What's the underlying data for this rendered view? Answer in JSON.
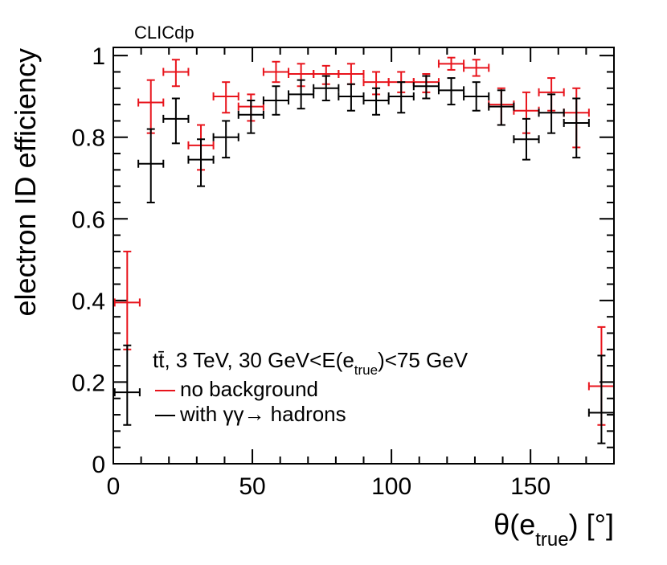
{
  "chart_data": {
    "type": "scatter",
    "experiment_label": "CLICdp",
    "xlabel_main": "θ(e",
    "xlabel_sub": "true",
    "xlabel_tail": ") [°]",
    "ylabel": "electron ID efficiency",
    "xlim": [
      0,
      180
    ],
    "ylim": [
      0,
      1.02
    ],
    "x_ticks": [
      0,
      50,
      100,
      150
    ],
    "x_tick_labels": [
      "0",
      "50",
      "100",
      "150"
    ],
    "y_ticks": [
      0,
      0.2,
      0.4,
      0.6,
      0.8,
      1
    ],
    "y_tick_labels": [
      "0",
      "0.2",
      "0.4",
      "0.6",
      "0.8",
      "1"
    ],
    "legend": {
      "header_main": "tt̄, 3 TeV, 30 GeV<E(e",
      "header_sub": "true",
      "header_tail": ")<75 GeV",
      "entries": [
        "no background",
        "with γγ→ hadrons"
      ]
    },
    "series": [
      {
        "name": "no background",
        "color": "#e8141c",
        "x": [
          5,
          13.5,
          22.5,
          31.5,
          40.5,
          49.5,
          58.5,
          67.5,
          76.5,
          85.5,
          94.5,
          103.5,
          112.5,
          121.5,
          130.5,
          139.5,
          148.5,
          157.5,
          166.5,
          175.5
        ],
        "xerr": [
          4.5,
          4.5,
          4.5,
          4.5,
          4.5,
          4.5,
          4.5,
          4.5,
          4.5,
          4.5,
          4.5,
          4.5,
          4.5,
          4.5,
          4.5,
          4.5,
          4.5,
          4.5,
          4.5,
          4.5
        ],
        "y": [
          0.395,
          0.885,
          0.96,
          0.78,
          0.9,
          0.875,
          0.96,
          0.955,
          0.955,
          0.955,
          0.935,
          0.935,
          0.935,
          0.98,
          0.97,
          0.88,
          0.865,
          0.91,
          0.86,
          0.19
        ],
        "yerr_up": [
          0.125,
          0.055,
          0.03,
          0.05,
          0.035,
          0.03,
          0.025,
          0.025,
          0.02,
          0.025,
          0.025,
          0.025,
          0.02,
          0.015,
          0.02,
          0.04,
          0.045,
          0.035,
          0.06,
          0.145
        ],
        "yerr_down": [
          0.115,
          0.075,
          0.035,
          0.06,
          0.04,
          0.035,
          0.025,
          0.03,
          0.025,
          0.025,
          0.03,
          0.025,
          0.025,
          0.015,
          0.02,
          0.05,
          0.055,
          0.045,
          0.085,
          0.095
        ]
      },
      {
        "name": "with γγ→ hadrons",
        "color": "#000000",
        "x": [
          5,
          13.5,
          22.5,
          31.5,
          40.5,
          49.5,
          58.5,
          67.5,
          76.5,
          85.5,
          94.5,
          103.5,
          112.5,
          121.5,
          130.5,
          139.5,
          148.5,
          157.5,
          166.5,
          175.5
        ],
        "xerr": [
          4.5,
          4.5,
          4.5,
          4.5,
          4.5,
          4.5,
          4.5,
          4.5,
          4.5,
          4.5,
          4.5,
          4.5,
          4.5,
          4.5,
          4.5,
          4.5,
          4.5,
          4.5,
          4.5,
          4.5
        ],
        "y": [
          0.175,
          0.735,
          0.845,
          0.745,
          0.8,
          0.855,
          0.89,
          0.905,
          0.92,
          0.9,
          0.89,
          0.9,
          0.925,
          0.915,
          0.9,
          0.875,
          0.795,
          0.86,
          0.835,
          0.125
        ],
        "yerr_up": [
          0.115,
          0.085,
          0.05,
          0.05,
          0.04,
          0.035,
          0.035,
          0.035,
          0.03,
          0.03,
          0.03,
          0.035,
          0.025,
          0.03,
          0.035,
          0.04,
          0.05,
          0.045,
          0.06,
          0.14
        ],
        "yerr_down": [
          0.08,
          0.095,
          0.06,
          0.065,
          0.05,
          0.045,
          0.035,
          0.035,
          0.03,
          0.035,
          0.035,
          0.04,
          0.03,
          0.035,
          0.035,
          0.045,
          0.05,
          0.05,
          0.085,
          0.075
        ]
      }
    ]
  }
}
